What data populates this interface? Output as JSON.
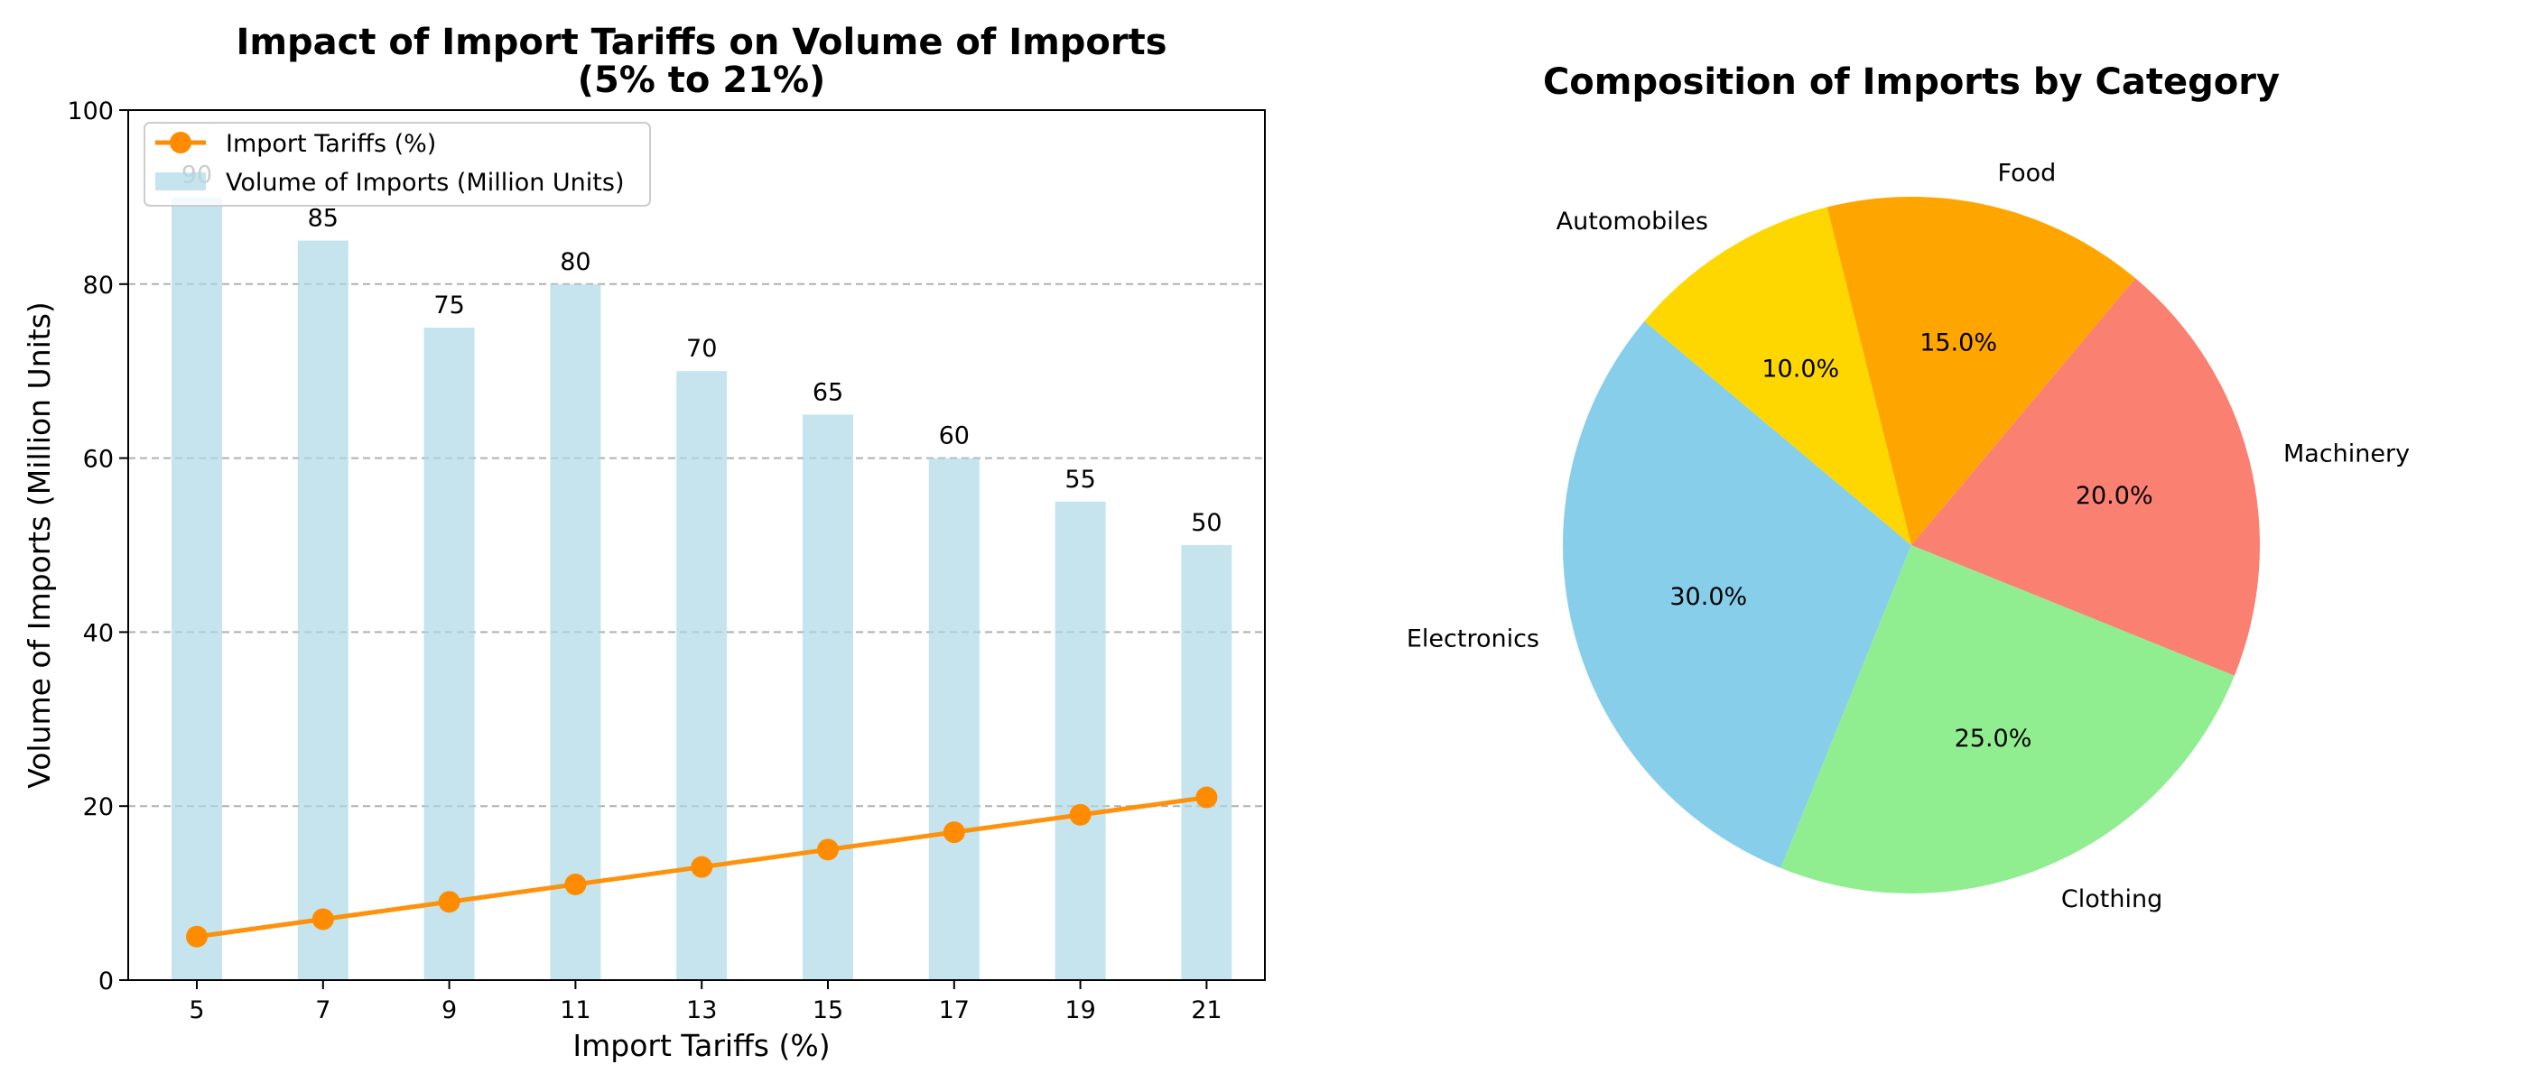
{
  "chart_data": [
    {
      "type": "bar",
      "title": "Impact of Import Tariffs on Volume of Imports",
      "subtitle": "(5% to 21%)",
      "xlabel": "Import Tariffs (%)",
      "ylabel": "Volume of Imports (Million Units)",
      "categories": [
        "5",
        "7",
        "9",
        "11",
        "13",
        "15",
        "17",
        "19",
        "21"
      ],
      "ylim": [
        0,
        100
      ],
      "yticks": [
        "0",
        "20",
        "40",
        "60",
        "80",
        "100"
      ],
      "grid": "horizontal dashed",
      "legend_position": "top-left",
      "series": [
        {
          "name": "Volume of Imports (Million Units)",
          "kind": "bar",
          "color": "#add8e6",
          "values": [
            90,
            85,
            75,
            80,
            70,
            65,
            60,
            55,
            50
          ],
          "data_labels": [
            "90",
            "85",
            "75",
            "80",
            "70",
            "65",
            "60",
            "55",
            "50"
          ]
        },
        {
          "name": "Import Tariffs (%)",
          "kind": "line",
          "color": "#ff8c00",
          "marker": "circle",
          "values": [
            5,
            7,
            9,
            11,
            13,
            15,
            17,
            19,
            21
          ]
        }
      ]
    },
    {
      "type": "pie",
      "title": "Composition of Imports by Category",
      "slices": [
        {
          "label": "Electronics",
          "value": 30,
          "pct": "30.0%",
          "color": "#87ceeb"
        },
        {
          "label": "Clothing",
          "value": 25,
          "pct": "25.0%",
          "color": "#90ee90"
        },
        {
          "label": "Machinery",
          "value": 20,
          "pct": "20.0%",
          "color": "#fa8072"
        },
        {
          "label": "Food",
          "value": 15,
          "pct": "15.0%",
          "color": "#ffa500"
        },
        {
          "label": "Automobiles",
          "value": 10,
          "pct": "10.0%",
          "color": "#ffd700"
        }
      ]
    }
  ]
}
